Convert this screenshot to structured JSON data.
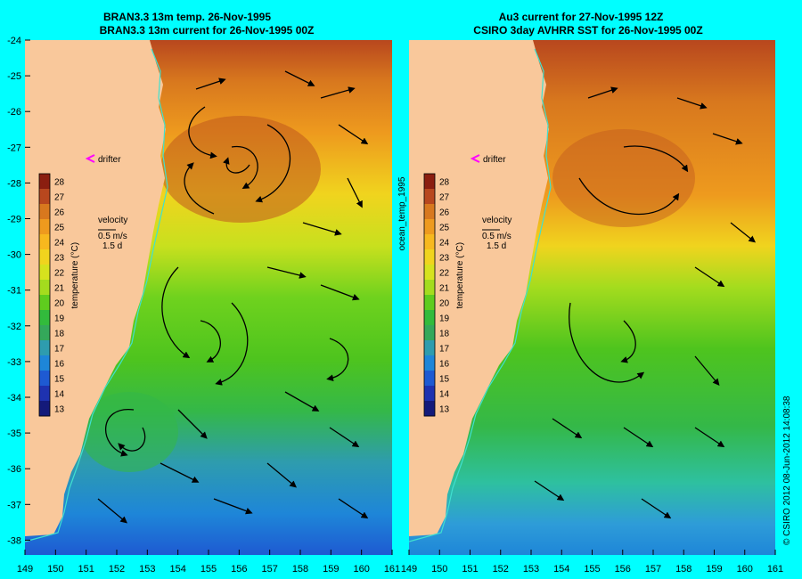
{
  "left_panel": {
    "title_line1": "BRAN3.3 13m temp. 26-Nov-1995",
    "title_line2": "BRAN3.3 13m current for 26-Nov-1995 00Z"
  },
  "right_panel": {
    "title_line1": "Au3 current for 27-Nov-1995 12Z",
    "title_line2": "CSIRO 3day AVHRR SST for 26-Nov-1995 00Z"
  },
  "y_ticks": [
    "-24",
    "-25",
    "-26",
    "-27",
    "-28",
    "-29",
    "-30",
    "-31",
    "-32",
    "-33",
    "-34",
    "-35",
    "-36",
    "-37",
    "-38"
  ],
  "x_ticks_left": [
    "149",
    "150",
    "151",
    "152",
    "153",
    "154",
    "155",
    "156",
    "157",
    "158",
    "159",
    "160",
    "161"
  ],
  "x_ticks_right": [
    "149",
    "150",
    "151",
    "152",
    "153",
    "154",
    "155",
    "156",
    "157",
    "158",
    "159",
    "160",
    "161"
  ],
  "colorbar": {
    "labels": [
      "28",
      "27",
      "26",
      "25",
      "24",
      "23",
      "22",
      "21",
      "20",
      "19",
      "18",
      "17",
      "16",
      "15",
      "14",
      "13"
    ],
    "axis_label": "temperature (°C)",
    "colors": [
      "#8b1e10",
      "#b8471e",
      "#d8781e",
      "#ee9a1e",
      "#f7b81e",
      "#f0d41e",
      "#d6e21e",
      "#a4dc1e",
      "#5fcc1e",
      "#32bb3c",
      "#34a85a",
      "#2e9cae",
      "#1e86d8",
      "#1e5ad2",
      "#1e32b0",
      "#141a7a"
    ]
  },
  "legend": {
    "drifter": "drifter",
    "drifter_color": "#ff00ff",
    "velocity_label": "velocity",
    "speed": "0.5 m/s",
    "duration": "1.5 d"
  },
  "vertical_label": "ocean_temp_1995",
  "credit": "© CSIRO 2012   08-Jun-2012 14:08:38",
  "colors": {
    "land": "#f9c89b",
    "frame": "#00ffff",
    "coast_line": "#40e0d0"
  }
}
